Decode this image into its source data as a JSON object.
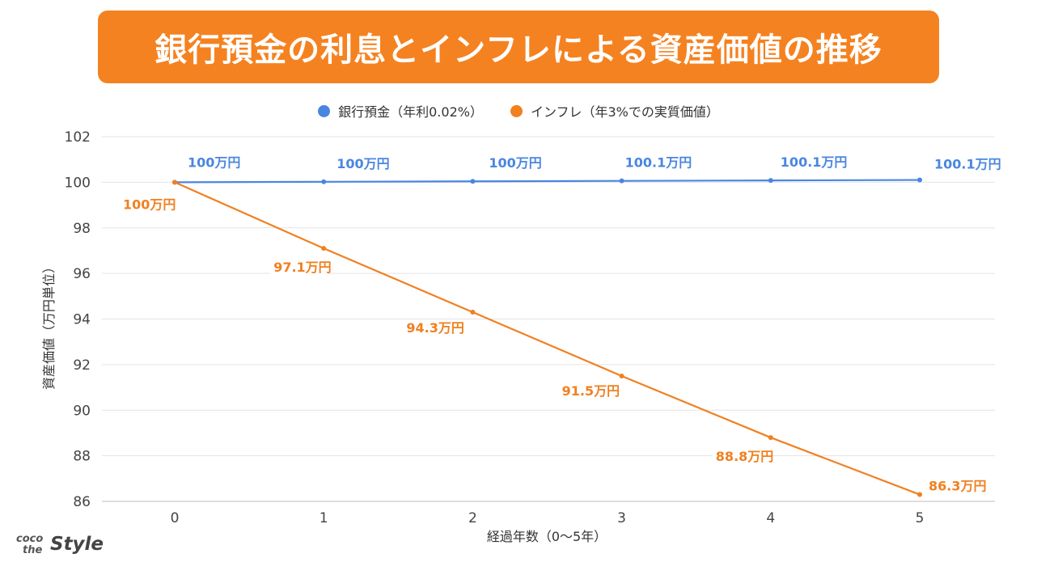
{
  "title": "銀行預金の利息とインフレによる資産価値の推移",
  "colors": {
    "accent": "#f58220",
    "bank": "#4a86e0",
    "inflation": "#f08020",
    "grid": "#e3e3e3",
    "axis_text": "#444444"
  },
  "legend": [
    {
      "label": "銀行預金（年利0.02%）",
      "color": "#4a86e0"
    },
    {
      "label": "インフレ（年3%での実質価値）",
      "color": "#f08020"
    }
  ],
  "chart_data": {
    "type": "line",
    "title": "銀行預金の利息とインフレによる資産価値の推移",
    "xlabel": "経過年数（0〜5年）",
    "ylabel": "資産価値（万円単位）",
    "x": [
      0,
      1,
      2,
      3,
      4,
      5
    ],
    "x_tick_labels": [
      "0",
      "1",
      "2",
      "3",
      "4",
      "5"
    ],
    "ylim": [
      86,
      102
    ],
    "y_ticks": [
      86,
      88,
      90,
      92,
      94,
      96,
      98,
      100,
      102
    ],
    "grid": true,
    "series": [
      {
        "name": "銀行預金（年利0.02%）",
        "values": [
          100.0,
          100.02,
          100.04,
          100.06,
          100.08,
          100.1
        ],
        "data_labels": [
          "100万円",
          "100万円",
          "100万円",
          "100.1万円",
          "100.1万円",
          "100.1万円"
        ],
        "color": "#4a86e0"
      },
      {
        "name": "インフレ（年3%での実質価値）",
        "values": [
          100.0,
          97.1,
          94.3,
          91.5,
          88.8,
          86.3
        ],
        "data_labels": [
          "100万円",
          "97.1万円",
          "94.3万円",
          "91.5万円",
          "88.8万円",
          "86.3万円"
        ],
        "color": "#f08020"
      }
    ]
  },
  "logo": {
    "line1": "coco",
    "line2": "the",
    "brand": "Style"
  }
}
